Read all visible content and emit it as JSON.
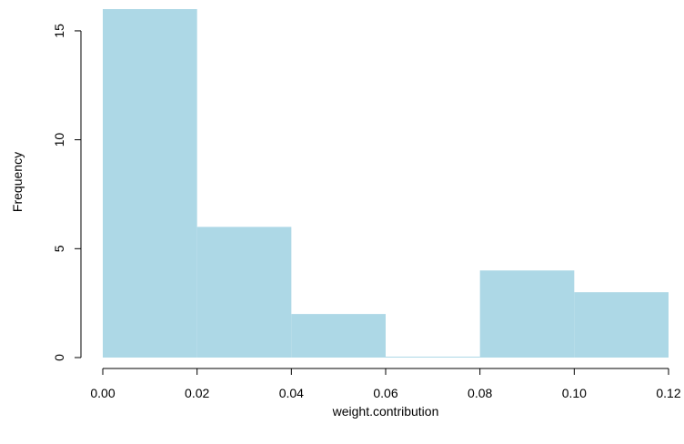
{
  "chart_data": {
    "type": "bar",
    "bins": [
      {
        "from": 0.0,
        "to": 0.02,
        "count": 16
      },
      {
        "from": 0.02,
        "to": 0.04,
        "count": 6
      },
      {
        "from": 0.04,
        "to": 0.06,
        "count": 2
      },
      {
        "from": 0.06,
        "to": 0.08,
        "count": 0
      },
      {
        "from": 0.08,
        "to": 0.1,
        "count": 4
      },
      {
        "from": 0.1,
        "to": 0.12,
        "count": 3
      }
    ],
    "title": "",
    "xlabel": "weight.contribution",
    "ylabel": "Frequency",
    "xlim": [
      0,
      0.12
    ],
    "ylim": [
      0,
      16
    ],
    "x_ticks": [
      "0.00",
      "0.02",
      "0.04",
      "0.06",
      "0.08",
      "0.10",
      "0.12"
    ],
    "x_tick_values": [
      0,
      0.02,
      0.04,
      0.06,
      0.08,
      0.1,
      0.12
    ],
    "y_ticks": [
      "0",
      "5",
      "10",
      "15"
    ],
    "y_tick_values": [
      0,
      5,
      10,
      15
    ],
    "grid": false,
    "bar_color": "#add8e6"
  }
}
